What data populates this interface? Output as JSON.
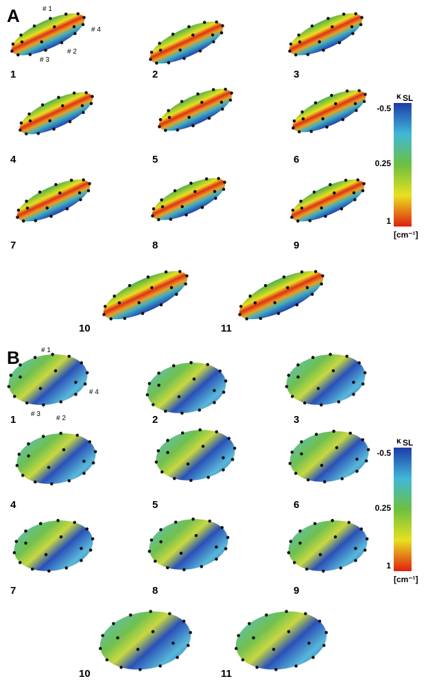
{
  "panels": [
    {
      "label": "A",
      "items": [
        "1",
        "2",
        "3",
        "4",
        "5",
        "6",
        "7",
        "8",
        "9",
        "10",
        "11"
      ],
      "markers": [
        "# 1",
        "# 2",
        "# 3",
        "# 4"
      ],
      "colorbar": {
        "title": "κ",
        "subscript": "SL",
        "ticks": [
          "-0.5",
          "0.25",
          "1"
        ],
        "unit": "[cm⁻¹]"
      }
    },
    {
      "label": "B",
      "items": [
        "1",
        "2",
        "3",
        "4",
        "5",
        "6",
        "7",
        "8",
        "9",
        "10",
        "11"
      ],
      "markers": [
        "# 1",
        "# 2",
        "# 3",
        "# 4"
      ],
      "colorbar": {
        "title": "κ",
        "subscript": "SL",
        "ticks": [
          "-0.5",
          "0.25",
          "1"
        ],
        "unit": "[cm⁻¹]"
      }
    }
  ]
}
